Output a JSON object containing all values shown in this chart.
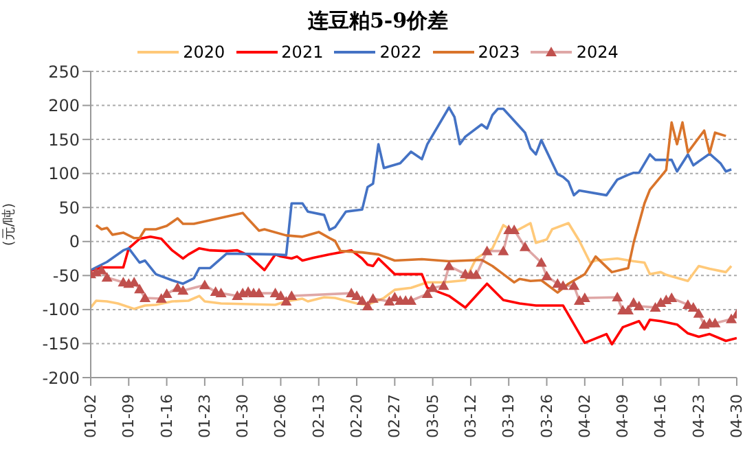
{
  "chart_data": {
    "type": "line",
    "title": "连豆粕5-9价差",
    "ylabel": "(元/吨)",
    "xlim": [
      "--01-02",
      "--04-30"
    ],
    "xticks": [
      {
        "value": "--01-02",
        "label": "01-02"
      },
      {
        "value": "--01-09",
        "label": "01-09"
      },
      {
        "value": "--01-16",
        "label": "01-16"
      },
      {
        "value": "--01-23",
        "label": "01-23"
      },
      {
        "value": "--01-30",
        "label": "01-30"
      },
      {
        "value": "--02-06",
        "label": "02-06"
      },
      {
        "value": "--02-13",
        "label": "02-13"
      },
      {
        "value": "--02-20",
        "label": "02-20"
      },
      {
        "value": "--02-27",
        "label": "02-27"
      },
      {
        "value": "--03-05",
        "label": "03-05"
      },
      {
        "value": "--03-12",
        "label": "03-12"
      },
      {
        "value": "--03-19",
        "label": "03-19"
      },
      {
        "value": "--03-26",
        "label": "03-26"
      },
      {
        "value": "--04-02",
        "label": "04-02"
      },
      {
        "value": "--04-09",
        "label": "04-09"
      },
      {
        "value": "--04-16",
        "label": "04-16"
      },
      {
        "value": "--04-23",
        "label": "04-23"
      },
      {
        "value": "--04-30",
        "label": "04-30"
      }
    ],
    "ylim": [
      -200,
      250
    ],
    "yticks": [
      -200,
      -150,
      -100,
      -50,
      0,
      50,
      100,
      150,
      200,
      250
    ],
    "grid": "y",
    "legend": "top",
    "marker": "none",
    "line_style": "solid",
    "series": [
      {
        "name": "2020",
        "color": "#ffc979",
        "x": [
          "--01-02",
          "--01-03",
          "--01-05",
          "--01-07",
          "--01-10",
          "--01-12",
          "--01-14",
          "--01-17",
          "--01-20",
          "--01-22",
          "--01-23",
          "--01-26",
          "--02-05",
          "--02-07",
          "--02-10",
          "--02-11",
          "--02-14",
          "--02-16",
          "--02-20",
          "--02-22",
          "--02-25",
          "--02-27",
          "--03-01",
          "--03-04",
          "--03-07",
          "--03-11",
          "--03-13",
          "--03-16",
          "--03-18",
          "--03-20",
          "--03-23",
          "--03-24",
          "--03-26",
          "--03-27",
          "--03-30",
          "--04-01",
          "--04-03",
          "--04-04",
          "--04-08",
          "--04-11",
          "--04-13",
          "--04-14",
          "--04-16",
          "--04-17",
          "--04-21",
          "--04-23",
          "--04-25",
          "--04-28",
          "--04-29"
        ],
        "values": [
          -97,
          -87,
          -88,
          -91,
          -99,
          -94,
          -93,
          -88,
          -87,
          -80,
          -88,
          -91,
          -93,
          -88,
          -84,
          -88,
          -82,
          -83,
          -91,
          -93,
          -83,
          -71,
          -68,
          -60,
          -60,
          -57,
          -25,
          -10,
          24,
          14,
          27,
          -2,
          3,
          18,
          27,
          1,
          -31,
          -28,
          -25,
          -29,
          -31,
          -48,
          -45,
          -49,
          -58,
          -36,
          -40,
          -45,
          -36
        ]
      },
      {
        "name": "2021",
        "color": "#ff0000",
        "x": [
          "--01-02",
          "--01-04",
          "--01-08",
          "--01-09",
          "--01-11",
          "--01-13",
          "--01-15",
          "--01-17",
          "--01-19",
          "--01-20",
          "--01-22",
          "--01-24",
          "--01-27",
          "--01-29",
          "--01-31",
          "--02-03",
          "--02-05",
          "--02-06",
          "--02-08",
          "--02-09",
          "--02-10",
          "--02-12",
          "--02-15",
          "--02-19",
          "--02-21",
          "--02-22",
          "--02-23",
          "--02-24",
          "--02-27",
          "--03-03",
          "--03-04",
          "--03-08",
          "--03-11",
          "--03-15",
          "--03-18",
          "--03-21",
          "--03-24",
          "--03-29",
          "--04-02",
          "--04-06",
          "--04-07",
          "--04-09",
          "--04-12",
          "--04-13",
          "--04-14",
          "--04-16",
          "--04-19",
          "--04-21",
          "--04-23",
          "--04-25",
          "--04-28",
          "--04-30"
        ],
        "values": [
          -43,
          -38,
          -38,
          -10,
          4,
          7,
          4,
          -13,
          -25,
          -19,
          -10,
          -13,
          -14,
          -13,
          -20,
          -42,
          -19,
          -22,
          -25,
          -22,
          -28,
          -24,
          -19,
          -13,
          -25,
          -34,
          -36,
          -25,
          -48,
          -48,
          -68,
          -80,
          -97,
          -62,
          -86,
          -91,
          -94,
          -94,
          -149,
          -136,
          -151,
          -126,
          -117,
          -129,
          -115,
          -117,
          -122,
          -135,
          -140,
          -136,
          -146,
          -142
        ]
      },
      {
        "name": "2022",
        "color": "#4472c4",
        "x": [
          "--01-02",
          "--01-05",
          "--01-08",
          "--01-09",
          "--01-11",
          "--01-12",
          "--01-14",
          "--01-17",
          "--01-19",
          "--01-21",
          "--01-22",
          "--01-24",
          "--01-27",
          "--01-29",
          "--02-05",
          "--02-07",
          "--02-08",
          "--02-10",
          "--02-11",
          "--02-14",
          "--02-15",
          "--02-16",
          "--02-18",
          "--02-21",
          "--02-22",
          "--02-23",
          "--02-24",
          "--02-25",
          "--02-28",
          "--03-01",
          "--03-03",
          "--03-04",
          "--03-08",
          "--03-09",
          "--03-10",
          "--03-11",
          "--03-14",
          "--03-15",
          "--03-16",
          "--03-17",
          "--03-18",
          "--03-22",
          "--03-23",
          "--03-24",
          "--03-25",
          "--03-28",
          "--03-29",
          "--03-30",
          "--03-31",
          "--04-01",
          "--04-06",
          "--04-08",
          "--04-10",
          "--04-11",
          "--04-12",
          "--04-14",
          "--04-15",
          "--04-18",
          "--04-19",
          "--04-21",
          "--04-22",
          "--04-25",
          "--04-27",
          "--04-28",
          "--04-29"
        ],
        "values": [
          -42,
          -30,
          -13,
          -10,
          -31,
          -28,
          -48,
          -57,
          -62,
          -54,
          -39,
          -39,
          -18,
          -18,
          -19,
          -20,
          56,
          56,
          44,
          39,
          17,
          21,
          44,
          47,
          80,
          85,
          143,
          108,
          115,
          132,
          121,
          143,
          197,
          183,
          143,
          154,
          172,
          166,
          186,
          195,
          195,
          160,
          137,
          128,
          149,
          99,
          95,
          88,
          68,
          75,
          68,
          91,
          98,
          101,
          101,
          128,
          120,
          120,
          103,
          128,
          112,
          129,
          115,
          103,
          106
        ]
      },
      {
        "name": "2023",
        "color": "#d9742b",
        "x": [
          "--01-03",
          "--01-04",
          "--01-05",
          "--01-06",
          "--01-08",
          "--01-10",
          "--01-11",
          "--01-12",
          "--01-14",
          "--01-16",
          "--01-18",
          "--01-19",
          "--01-21",
          "--01-30",
          "--01-31",
          "--02-02",
          "--02-03",
          "--02-07",
          "--02-10",
          "--02-13",
          "--02-15",
          "--02-16",
          "--02-17",
          "--02-21",
          "--02-24",
          "--02-27",
          "--03-03",
          "--03-08",
          "--03-14",
          "--03-16",
          "--03-18",
          "--03-20",
          "--03-21",
          "--03-23",
          "--03-25",
          "--03-28",
          "--03-30",
          "--04-02",
          "--04-04",
          "--04-07",
          "--04-10",
          "--04-11",
          "--04-13",
          "--04-14",
          "--04-17",
          "--04-18",
          "--04-19",
          "--04-20",
          "--04-21",
          "--04-24",
          "--04-25",
          "--04-26",
          "--04-28"
        ],
        "values": [
          24,
          18,
          20,
          10,
          13,
          5,
          5,
          18,
          18,
          23,
          34,
          26,
          26,
          42,
          33,
          16,
          18,
          9,
          7,
          14,
          5,
          1,
          -14,
          -16,
          -19,
          -28,
          -26,
          -29,
          -27,
          -36,
          -48,
          -60,
          -55,
          -58,
          -57,
          -75,
          -62,
          -48,
          -22,
          -45,
          -39,
          -2,
          56,
          76,
          105,
          175,
          143,
          175,
          131,
          163,
          130,
          160,
          155
        ]
      },
      {
        "name": "2024",
        "color": "#c0504d",
        "marker": "triangle",
        "x": [
          "--01-02",
          "--01-03",
          "--01-04",
          "--01-05",
          "--01-08",
          "--01-09",
          "--01-10",
          "--01-11",
          "--01-12",
          "--01-15",
          "--01-16",
          "--01-18",
          "--01-19",
          "--01-23",
          "--01-25",
          "--01-26",
          "--01-29",
          "--01-30",
          "--01-31",
          "--02-01",
          "--02-02",
          "--02-05",
          "--02-06",
          "--02-07",
          "--02-08",
          "--02-19",
          "--02-20",
          "--02-21",
          "--02-22",
          "--02-23",
          "--02-26",
          "--02-27",
          "--02-28",
          "--02-29",
          "--03-01",
          "--03-04",
          "--03-05",
          "--03-07",
          "--03-08",
          "--03-11",
          "--03-12",
          "--03-13",
          "--03-15",
          "--03-18",
          "--03-19",
          "--03-20",
          "--03-22",
          "--03-25",
          "--03-26",
          "--03-28",
          "--03-29",
          "--03-31",
          "--04-01",
          "--04-02",
          "--04-08",
          "--04-09",
          "--04-10",
          "--04-11",
          "--04-12",
          "--04-15",
          "--04-16",
          "--04-17",
          "--04-18",
          "--04-21",
          "--04-22",
          "--04-23",
          "--04-24",
          "--04-25",
          "--04-26",
          "--04-29",
          "--04-30"
        ],
        "values": [
          -48,
          -45,
          -42,
          -53,
          -60,
          -62,
          -60,
          -70,
          -83,
          -84,
          -77,
          -68,
          -72,
          -64,
          -74,
          -76,
          -80,
          -76,
          -74,
          -76,
          -76,
          -76,
          -80,
          -88,
          -80,
          -76,
          -80,
          -87,
          -95,
          -84,
          -88,
          -82,
          -87,
          -87,
          -87,
          -77,
          -68,
          -65,
          -36,
          -48,
          -49,
          -49,
          -14,
          -14,
          17,
          17,
          -8,
          -31,
          -51,
          -62,
          -65,
          -65,
          -87,
          -83,
          -82,
          -101,
          -101,
          -90,
          -95,
          -97,
          -90,
          -86,
          -83,
          -93,
          -97,
          -106,
          -122,
          -120,
          -120,
          -114,
          -107
        ]
      }
    ]
  }
}
